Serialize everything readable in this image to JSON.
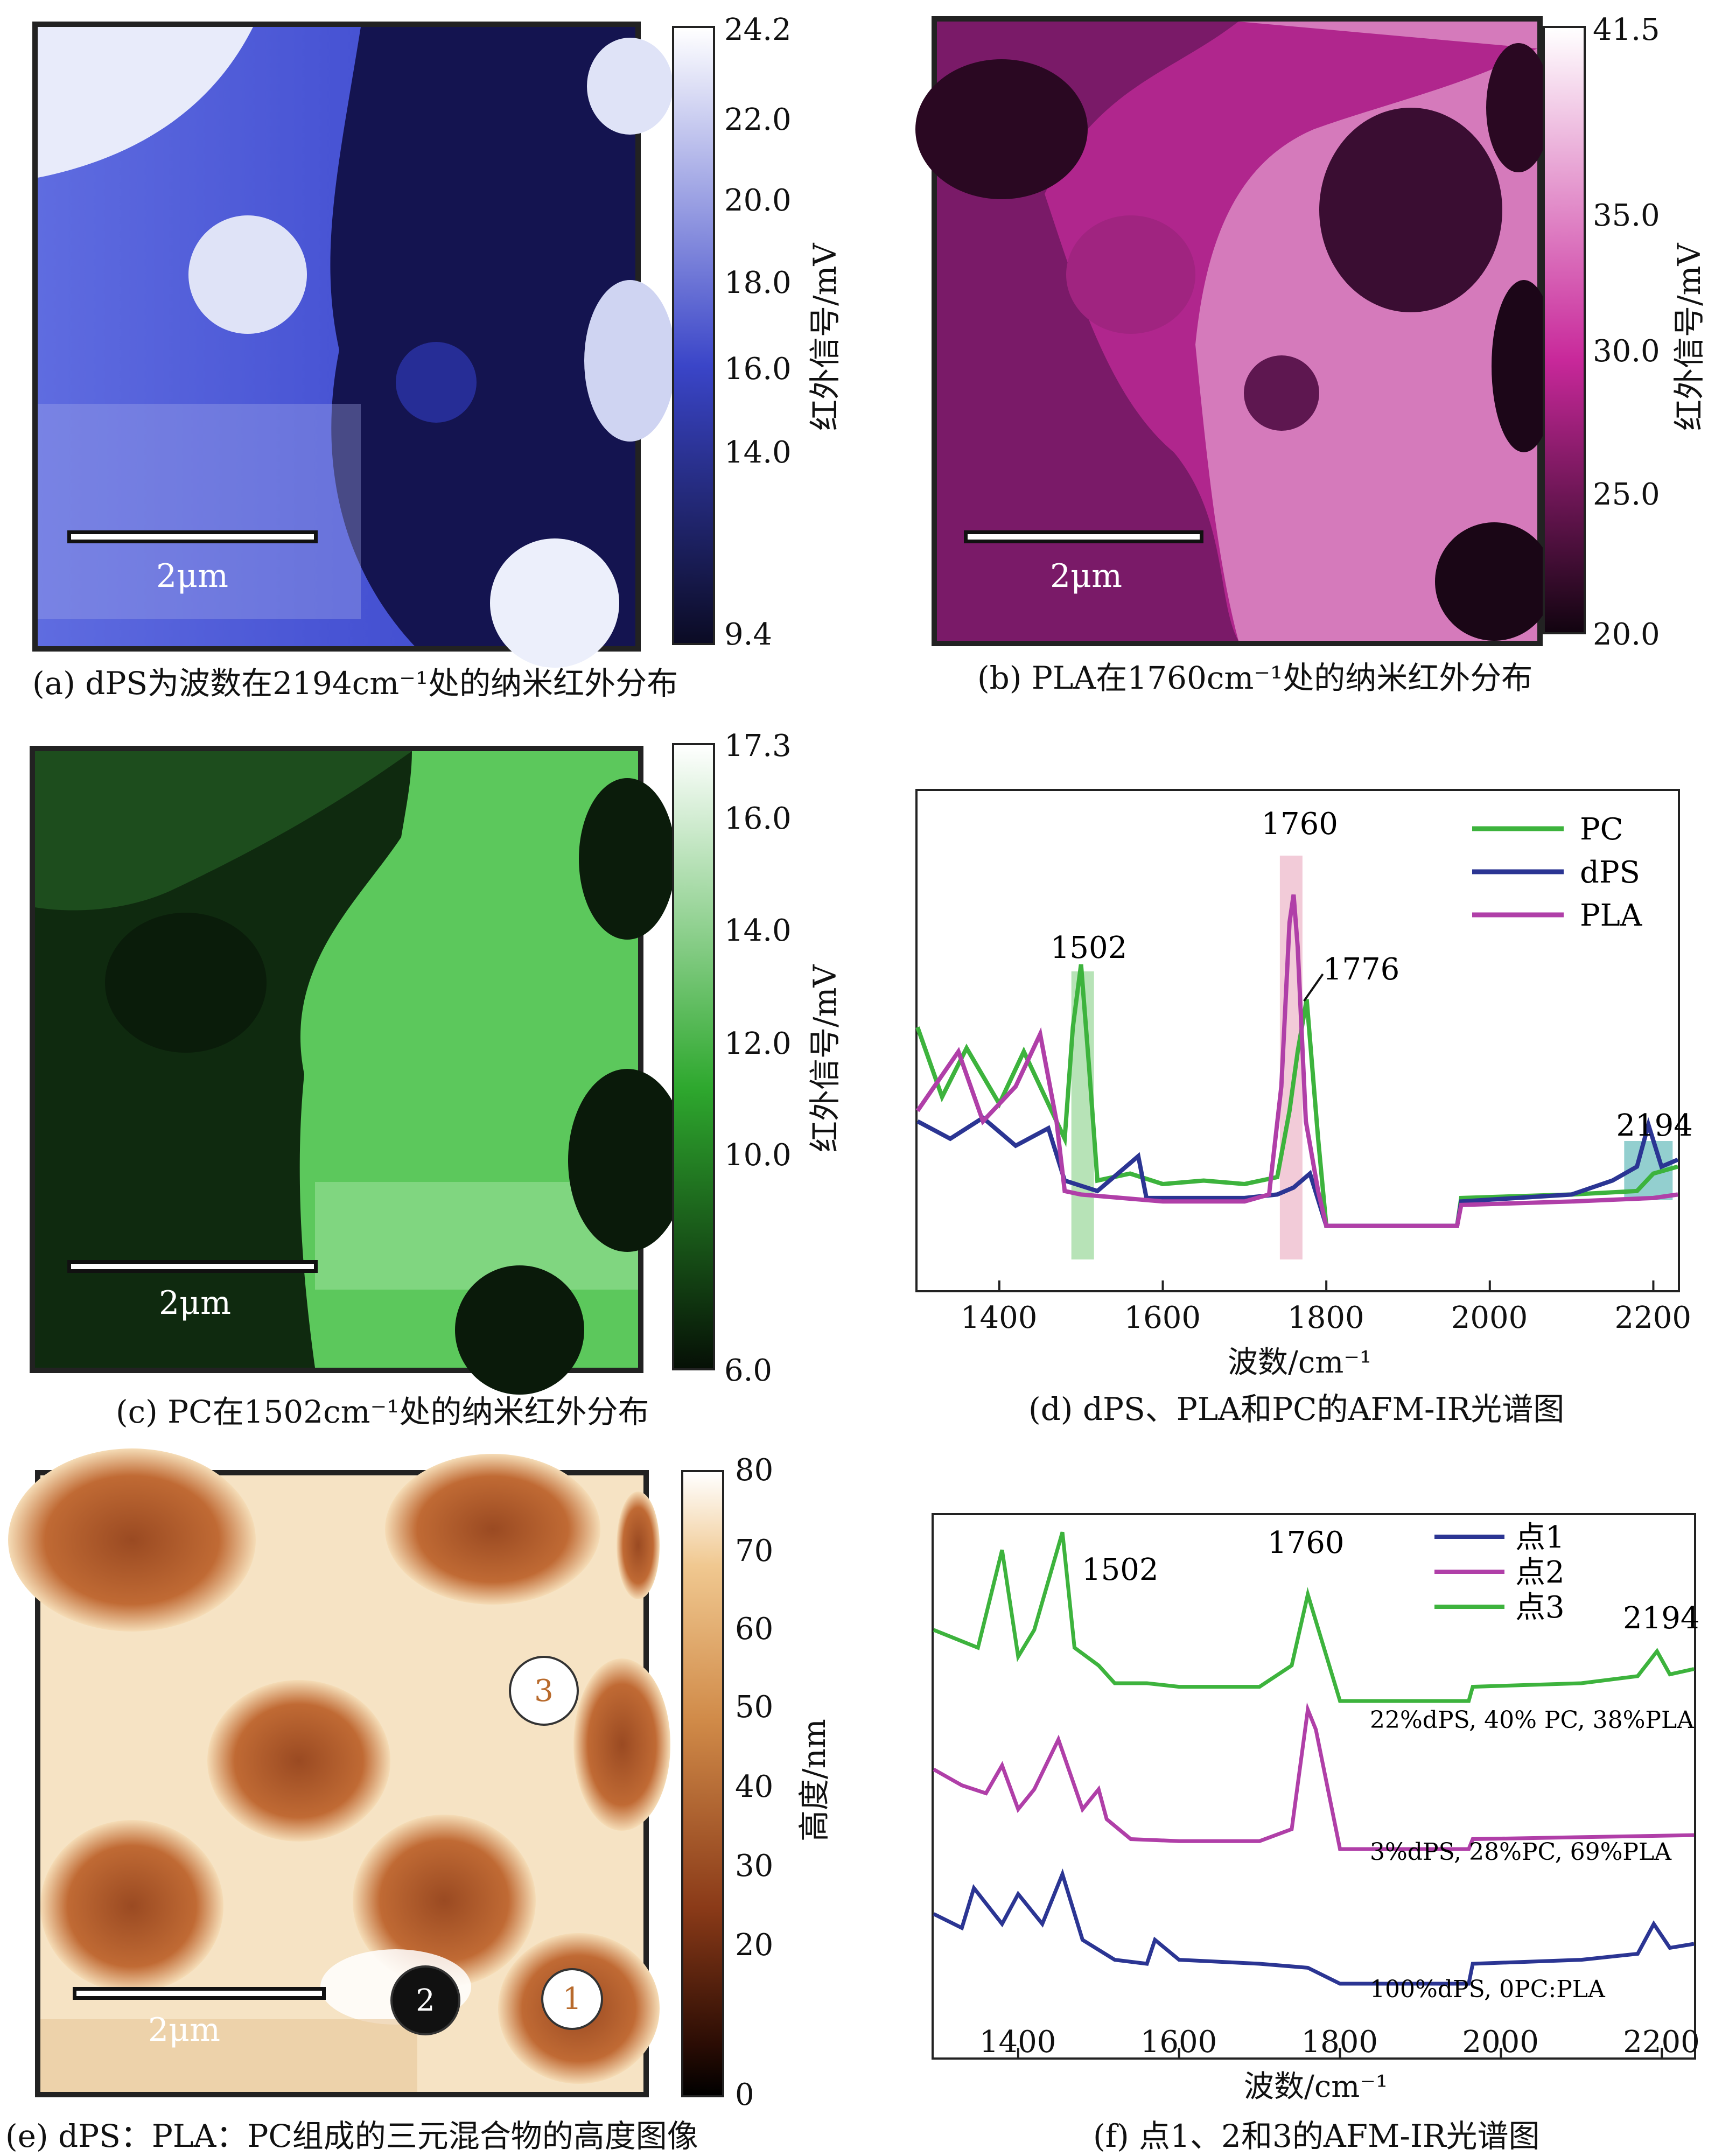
{
  "panels": {
    "a": {
      "caption": "(a) dPS为波数在2194cm⁻¹处的纳米红外分布",
      "scale_label": "2μm",
      "colorbar_label": "红外信号/mV",
      "colorbar_ticks": [
        "24.2",
        "22.0",
        "20.0",
        "18.0",
        "16.0",
        "14.0",
        "9.4"
      ],
      "colorbar_top": "#ffffff",
      "colorbar_mid": "#3a45c8",
      "colorbar_bottom": "#0b0b24"
    },
    "b": {
      "caption": "(b) PLA在1760cm⁻¹处的纳米红外分布",
      "scale_label": "2μm",
      "colorbar_label": "红外信号/mV",
      "colorbar_ticks": [
        "41.5",
        "35.0",
        "30.0",
        "25.0",
        "20.0"
      ],
      "colorbar_top": "#ffffff",
      "colorbar_mid": "#c8289a",
      "colorbar_bottom": "#120410"
    },
    "c": {
      "caption": "(c) PC在1502cm⁻¹处的纳米红外分布",
      "scale_label": "2μm",
      "colorbar_label": "红外信号/mV",
      "colorbar_ticks": [
        "17.3",
        "16.0",
        "14.0",
        "12.0",
        "10.0",
        "6.0"
      ],
      "colorbar_top": "#ffffff",
      "colorbar_mid": "#2ea82e",
      "colorbar_bottom": "#061006"
    },
    "d": {
      "caption": "(d) dPS、PLA和PC的AFM-IR光谱图",
      "xlabel": "波数/cm⁻¹",
      "xticks": [
        "1400",
        "1600",
        "1800",
        "2000",
        "2200"
      ],
      "legend": [
        "PC",
        "dPS",
        "PLA"
      ],
      "annotations": [
        "1502",
        "1760",
        "1776",
        "2194"
      ]
    },
    "e": {
      "caption": "(e) dPS：PLA：PC组成的三元混合物的高度图像",
      "scale_label": "2μm",
      "colorbar_label": "高度/nm",
      "colorbar_ticks": [
        "80",
        "70",
        "60",
        "50",
        "40",
        "30",
        "20",
        "0"
      ],
      "points": [
        "1",
        "2",
        "3"
      ]
    },
    "f": {
      "caption": "(f) 点1、2和3的AFM-IR光谱图",
      "xlabel": "波数/cm⁻¹",
      "xticks": [
        "1400",
        "1600",
        "1800",
        "2000",
        "2200"
      ],
      "legend": [
        "点1",
        "点2",
        "点3"
      ],
      "annotations": [
        "1502",
        "1760",
        "2194"
      ],
      "compositions": [
        "22%dPS, 40% PC, 38%PLA",
        "3%dPS, 28%PC, 69%PLA",
        "100%dPS, 0PC:PLA"
      ]
    }
  },
  "colors": {
    "PC": "#3db33d",
    "dPS": "#2b3593",
    "PLA": "#b03fa8"
  },
  "chart_data": [
    {
      "type": "line",
      "xlabel": "波数/cm⁻¹",
      "xlim": [
        1300,
        2230
      ],
      "series": [
        {
          "name": "PC",
          "x": [
            1300,
            1330,
            1360,
            1400,
            1430,
            1460,
            1480,
            1490,
            1500,
            1510,
            1520,
            1560,
            1600,
            1650,
            1700,
            1740,
            1755,
            1765,
            1776,
            1790,
            1800,
            1960,
            1965,
            2100,
            2180,
            2200,
            2230
          ],
          "y": [
            0.62,
            0.42,
            0.56,
            0.4,
            0.55,
            0.4,
            0.3,
            0.62,
            0.8,
            0.5,
            0.18,
            0.2,
            0.17,
            0.18,
            0.17,
            0.19,
            0.38,
            0.55,
            0.7,
            0.3,
            0.05,
            0.05,
            0.13,
            0.14,
            0.15,
            0.2,
            0.22
          ]
        },
        {
          "name": "dPS",
          "x": [
            1300,
            1340,
            1380,
            1420,
            1460,
            1480,
            1520,
            1570,
            1580,
            1620,
            1700,
            1740,
            1760,
            1780,
            1800,
            1960,
            1965,
            2100,
            2150,
            2180,
            2194,
            2210,
            2230
          ],
          "y": [
            0.35,
            0.3,
            0.36,
            0.28,
            0.33,
            0.18,
            0.15,
            0.25,
            0.13,
            0.13,
            0.13,
            0.14,
            0.16,
            0.2,
            0.05,
            0.05,
            0.12,
            0.14,
            0.18,
            0.22,
            0.34,
            0.22,
            0.24
          ]
        },
        {
          "name": "PLA",
          "x": [
            1300,
            1350,
            1380,
            1420,
            1450,
            1470,
            1480,
            1500,
            1600,
            1700,
            1730,
            1745,
            1755,
            1760,
            1765,
            1775,
            1790,
            1800,
            1960,
            1965,
            2100,
            2200,
            2230
          ],
          "y": [
            0.38,
            0.55,
            0.35,
            0.45,
            0.6,
            0.35,
            0.15,
            0.14,
            0.12,
            0.12,
            0.14,
            0.45,
            0.92,
            1.0,
            0.85,
            0.35,
            0.15,
            0.05,
            0.05,
            0.11,
            0.12,
            0.13,
            0.14
          ]
        }
      ],
      "annotations": [
        {
          "x": 1502,
          "label": "1502"
        },
        {
          "x": 1760,
          "label": "1760"
        },
        {
          "x": 1776,
          "label": "1776"
        },
        {
          "x": 2194,
          "label": "2194"
        }
      ]
    },
    {
      "type": "line",
      "xlabel": "波数/cm⁻¹",
      "xlim": [
        1295,
        2240
      ],
      "series": [
        {
          "name": "点1",
          "x": [
            1295,
            1330,
            1345,
            1380,
            1400,
            1430,
            1455,
            1480,
            1520,
            1560,
            1570,
            1600,
            1700,
            1760,
            1800,
            1960,
            1965,
            2100,
            2170,
            2190,
            2210,
            2240
          ],
          "y": [
            0.35,
            0.28,
            0.48,
            0.3,
            0.45,
            0.3,
            0.55,
            0.22,
            0.12,
            0.1,
            0.22,
            0.12,
            0.1,
            0.08,
            0.0,
            0.0,
            0.1,
            0.12,
            0.15,
            0.3,
            0.18,
            0.2
          ]
        },
        {
          "name": "点2",
          "x": [
            1295,
            1330,
            1360,
            1380,
            1400,
            1420,
            1450,
            1480,
            1500,
            1510,
            1540,
            1600,
            1700,
            1740,
            1760,
            1770,
            1790,
            1800,
            1960,
            1965,
            2240
          ],
          "y": [
            0.4,
            0.32,
            0.28,
            0.42,
            0.2,
            0.3,
            0.55,
            0.2,
            0.3,
            0.15,
            0.05,
            0.04,
            0.04,
            0.1,
            0.7,
            0.6,
            0.2,
            0.0,
            0.0,
            0.05,
            0.07
          ]
        },
        {
          "name": "点3",
          "x": [
            1295,
            1350,
            1380,
            1400,
            1420,
            1455,
            1470,
            1500,
            1520,
            1560,
            1600,
            1700,
            1740,
            1760,
            1780,
            1800,
            1960,
            1965,
            2100,
            2170,
            2194,
            2210,
            2240
          ],
          "y": [
            0.4,
            0.3,
            0.85,
            0.25,
            0.4,
            0.95,
            0.3,
            0.2,
            0.1,
            0.1,
            0.08,
            0.08,
            0.2,
            0.6,
            0.3,
            0.0,
            0.0,
            0.08,
            0.1,
            0.14,
            0.28,
            0.15,
            0.18
          ]
        }
      ],
      "annotations": [
        {
          "x": 1502,
          "label": "1502"
        },
        {
          "x": 1760,
          "label": "1760"
        },
        {
          "x": 2194,
          "label": "2194"
        }
      ]
    }
  ]
}
